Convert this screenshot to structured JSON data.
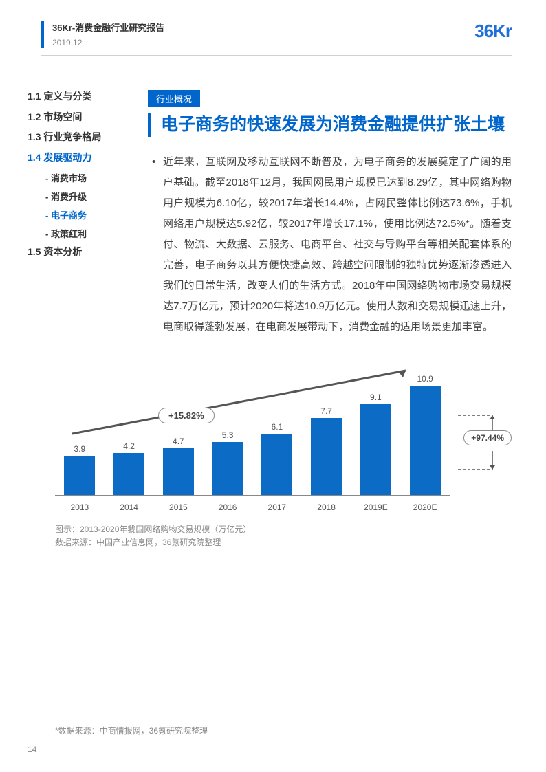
{
  "header": {
    "title": "36Kr-消费金融行业研究报告",
    "date": "2019.12",
    "logo": "36Kr"
  },
  "toc": {
    "items": [
      {
        "label": "1.1 定义与分类",
        "active": false
      },
      {
        "label": "1.2 市场空间",
        "active": false
      },
      {
        "label": "1.3 行业竞争格局",
        "active": false
      },
      {
        "label": "1.4 发展驱动力",
        "active": true
      }
    ],
    "subs": [
      {
        "label": "- 消费市场",
        "active": false
      },
      {
        "label": "- 消费升级",
        "active": false
      },
      {
        "label": "- 电子商务",
        "active": true
      },
      {
        "label": "- 政策红利",
        "active": false
      }
    ],
    "items2": [
      {
        "label": "1.5 资本分析",
        "active": false
      }
    ]
  },
  "main": {
    "tag": "行业概况",
    "headline": "电子商务的快速发展为消费金融提供扩张土壤",
    "body": "近年来，互联网及移动互联网不断普及，为电子商务的发展奠定了广阔的用户基础。截至2018年12月，我国网民用户规模已达到8.29亿，其中网络购物用户规模为6.10亿，较2017年增长14.4%，占网民整体比例达73.6%，手机网络用户规模达5.92亿，较2017年增长17.1%，使用比例达72.5%*。随着支付、物流、大数据、云服务、电商平台、社交与导购平台等相关配套体系的完善，电子商务以其方便快捷高效、跨越空间限制的独特优势逐渐渗透进入我们的日常生活，改变人们的生活方式。2018年中国网络购物市场交易规模达7.7万亿元，预计2020年将达10.9万亿元。使用人数和交易规模迅速上升，电商取得蓬勃发展，在电商发展带动下，消费金融的适用场景更加丰富。"
  },
  "chart": {
    "type": "bar",
    "categories": [
      "2013",
      "2014",
      "2015",
      "2016",
      "2017",
      "2018",
      "2019E",
      "2020E"
    ],
    "values": [
      3.9,
      4.2,
      4.7,
      5.3,
      6.1,
      7.7,
      9.1,
      10.9
    ],
    "bar_color": "#0c6bc4",
    "ymax": 11,
    "growth_label": "+15.82%",
    "side_label": "+97.44%",
    "caption1": "图示：2013-2020年我国网络购物交易规模（万亿元）",
    "caption2": "数据来源：中国产业信息网，36氪研究院整理"
  },
  "footnote": "*数据来源：中商情报网，36氪研究院整理",
  "page": "14"
}
